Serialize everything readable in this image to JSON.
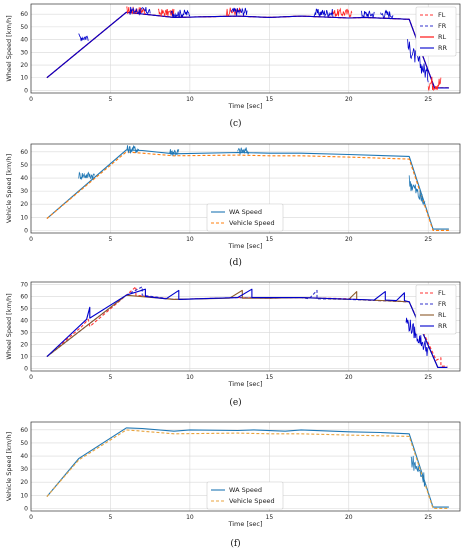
{
  "chart_data": [
    {
      "type": "line",
      "caption": "(c)",
      "xlabel": "Time [sec]",
      "ylabel": "Wheel Speed [km/h]",
      "xlim": [
        0,
        27
      ],
      "ylim": [
        -2,
        68
      ],
      "xticks": [
        "0",
        "5",
        "10",
        "15",
        "20",
        "25"
      ],
      "yticks": [
        "0",
        "10",
        "20",
        "30",
        "40",
        "50",
        "60"
      ],
      "grid": true,
      "legend_position": "right",
      "series": [
        {
          "name": "FL",
          "color": "#ff3333",
          "dash": "3,2",
          "x": [
            1,
            6,
            9,
            13,
            15,
            17,
            20,
            21,
            23.8,
            25.4,
            26.3
          ],
          "y": [
            10,
            61.5,
            57.5,
            58.5,
            57.5,
            58.5,
            57,
            57.5,
            56,
            2,
            2
          ]
        },
        {
          "name": "FR",
          "color": "#3333cc",
          "dash": "3,2",
          "x": [
            1,
            6,
            9,
            13,
            15,
            17,
            20,
            21,
            23.8,
            25.4,
            26.3
          ],
          "y": [
            10,
            61.5,
            57.5,
            58.5,
            57.5,
            58.5,
            57,
            57.5,
            56,
            2,
            2
          ]
        },
        {
          "name": "RL",
          "color": "#ff0000",
          "dash": "",
          "x": [
            1,
            6,
            9,
            13,
            15,
            17,
            20,
            21,
            23.8,
            25.4,
            26.3
          ],
          "y": [
            10,
            61.5,
            57.5,
            58.5,
            57.5,
            58.5,
            57,
            57.5,
            56,
            2,
            2
          ]
        },
        {
          "name": "RR",
          "color": "#0000cc",
          "dash": "",
          "x": [
            1,
            6,
            9,
            13,
            15,
            17,
            20,
            21,
            23.8,
            25.4,
            26.3
          ],
          "y": [
            10,
            61.5,
            57.5,
            58.5,
            57.5,
            58.5,
            57,
            57.5,
            56,
            2,
            2
          ]
        }
      ],
      "noise_bursts": [
        {
          "color": "#ff2222",
          "from": 6.0,
          "to": 7.2,
          "level": 63
        },
        {
          "color": "#0000cc",
          "from": 6.2,
          "to": 7.5,
          "level": 62.5
        },
        {
          "color": "#ff2222",
          "from": 8.0,
          "to": 9.0,
          "level": 61
        },
        {
          "color": "#0000cc",
          "from": 8.8,
          "to": 10.0,
          "level": 60.5
        },
        {
          "color": "#ff2222",
          "from": 12.3,
          "to": 13.2,
          "level": 62
        },
        {
          "color": "#0000cc",
          "from": 12.6,
          "to": 13.6,
          "level": 62
        },
        {
          "color": "#0000cc",
          "from": 17.8,
          "to": 19.0,
          "level": 61
        },
        {
          "color": "#ff2222",
          "from": 19.0,
          "to": 20.2,
          "level": 61
        },
        {
          "color": "#0000cc",
          "from": 20.8,
          "to": 21.6,
          "level": 60
        },
        {
          "color": "#0000cc",
          "from": 22.0,
          "to": 22.8,
          "level": 60
        },
        {
          "color": "#0000cc",
          "from": 3.0,
          "to": 3.6,
          "level": 42
        },
        {
          "color": "#0000cc",
          "from": 23.7,
          "to": 25.0,
          "level": 25
        },
        {
          "color": "#ff2222",
          "from": 25.0,
          "to": 25.8,
          "level": 6
        }
      ]
    },
    {
      "type": "line",
      "caption": "(d)",
      "xlabel": "Time [sec]",
      "ylabel": "Vehicle Speed [km/h]",
      "xlim": [
        0,
        27
      ],
      "ylim": [
        -2,
        66
      ],
      "xticks": [
        "0",
        "5",
        "10",
        "15",
        "20",
        "25"
      ],
      "yticks": [
        "0",
        "10",
        "20",
        "30",
        "40",
        "50",
        "60"
      ],
      "grid": true,
      "legend_position": "bottom-center",
      "series": [
        {
          "name": "WA Speed",
          "color": "#1f77b4",
          "dash": "",
          "x": [
            1,
            6,
            7,
            9,
            13,
            15,
            17,
            20,
            23.8,
            25.3,
            26.3
          ],
          "y": [
            9,
            61.5,
            61,
            58.5,
            59.5,
            59,
            59,
            58,
            56.5,
            1,
            1
          ]
        },
        {
          "name": "Vehicle Speed",
          "color": "#ff7f0e",
          "dash": "3,2",
          "x": [
            1,
            6,
            7,
            9,
            13,
            15,
            17,
            20,
            23.8,
            25.3,
            26.3
          ],
          "y": [
            9,
            60,
            59,
            57,
            57.5,
            57,
            57,
            56,
            54.5,
            0,
            0
          ]
        }
      ],
      "noise_bursts": [
        {
          "color": "#1f77b4",
          "from": 3.0,
          "to": 4.0,
          "level": 42
        },
        {
          "color": "#1f77b4",
          "from": 6.0,
          "to": 6.8,
          "level": 62
        },
        {
          "color": "#1f77b4",
          "from": 8.7,
          "to": 9.3,
          "level": 60
        },
        {
          "color": "#1f77b4",
          "from": 13.0,
          "to": 13.7,
          "level": 60.5
        },
        {
          "color": "#1f77b4",
          "from": 23.8,
          "to": 24.8,
          "level": 28
        }
      ]
    },
    {
      "type": "line",
      "caption": "(e)",
      "xlabel": "Time [sec]",
      "ylabel": "Wheel Speed [km/h]",
      "xlim": [
        0,
        27
      ],
      "ylim": [
        -2,
        72
      ],
      "xticks": [
        "0",
        "5",
        "10",
        "15",
        "20",
        "25"
      ],
      "yticks": [
        "0",
        "10",
        "20",
        "30",
        "40",
        "50",
        "60",
        "70"
      ],
      "grid": true,
      "legend_position": "right",
      "series": [
        {
          "name": "FL",
          "color": "#ff3333",
          "dash": "3,2",
          "x": [
            1,
            3.2,
            3.6,
            3.7,
            6,
            6.6,
            6.6,
            9,
            13,
            15,
            17,
            20,
            21,
            23.8,
            25.5,
            25.8,
            25.8,
            26.2
          ],
          "y": [
            10,
            35,
            41,
            35,
            61,
            68,
            61,
            57.5,
            59,
            58.5,
            59,
            58,
            57,
            55.5,
            7,
            9,
            2,
            2
          ]
        },
        {
          "name": "FR",
          "color": "#3333cc",
          "dash": "3,2",
          "x": [
            1,
            6,
            7.0,
            7.0,
            9,
            13,
            15,
            17,
            17.5,
            18.0,
            18.0,
            20,
            23.8,
            25.6,
            26.2
          ],
          "y": [
            10,
            61,
            68,
            61,
            57.5,
            59,
            58.5,
            59,
            58,
            65,
            58,
            57.5,
            55.5,
            1,
            1
          ]
        },
        {
          "name": "RL",
          "color": "#8b5a2b",
          "dash": "",
          "x": [
            1,
            6,
            9,
            12.5,
            13.3,
            13.3,
            15,
            17,
            20,
            20.5,
            20.5,
            23.8,
            25.6,
            26.2
          ],
          "y": [
            10,
            61,
            57.5,
            58.5,
            65,
            58.5,
            58.5,
            59,
            57.5,
            64,
            57.5,
            55.5,
            1,
            1
          ]
        },
        {
          "name": "RR",
          "color": "#0000cc",
          "dash": "",
          "x": [
            1,
            3.5,
            3.7,
            3.7,
            6,
            7.2,
            7.2,
            8.5,
            9.3,
            9.3,
            13,
            13.9,
            13.9,
            17,
            21.6,
            22.3,
            22.3,
            23,
            23.5,
            23.5,
            23.8,
            25.6,
            26.2
          ],
          "y": [
            10,
            41,
            51,
            42,
            61,
            66,
            60,
            58,
            65,
            57.5,
            59,
            66,
            59,
            59,
            57,
            64,
            57,
            56.5,
            63,
            56.5,
            55.5,
            1,
            1
          ]
        }
      ],
      "noise_bursts": [
        {
          "color": "#0000cc",
          "from": 23.6,
          "to": 25.0,
          "level": 30
        }
      ]
    },
    {
      "type": "line",
      "caption": "(f)",
      "xlabel": "Time [sec]",
      "ylabel": "Vehicle Speed [km/h]",
      "xlim": [
        0,
        27
      ],
      "ylim": [
        -2,
        66
      ],
      "xticks": [
        "0",
        "5",
        "10",
        "15",
        "20",
        "25"
      ],
      "yticks": [
        "0",
        "10",
        "20",
        "30",
        "40",
        "50",
        "60"
      ],
      "grid": true,
      "legend_position": "bottom-center",
      "series": [
        {
          "name": "WA Speed",
          "color": "#1f77b4",
          "dash": "",
          "x": [
            1,
            3,
            6,
            7,
            9,
            10,
            13,
            14,
            16,
            17,
            20,
            22,
            23.8,
            25.3,
            26.3
          ],
          "y": [
            9,
            38,
            61.5,
            61,
            59,
            60,
            59.5,
            60,
            59,
            60,
            58.5,
            58,
            57,
            1,
            1
          ]
        },
        {
          "name": "Vehicle Speed",
          "color": "#e8a33d",
          "dash": "3,2",
          "x": [
            1,
            3,
            6,
            7,
            9,
            13,
            15,
            17,
            20,
            23.8,
            25.3,
            26.3
          ],
          "y": [
            9,
            37,
            60,
            59,
            57,
            57.5,
            57,
            57,
            56,
            55,
            0,
            0
          ]
        }
      ],
      "noise_bursts": [
        {
          "color": "#1f77b4",
          "from": 23.9,
          "to": 24.8,
          "level": 28
        }
      ]
    }
  ]
}
